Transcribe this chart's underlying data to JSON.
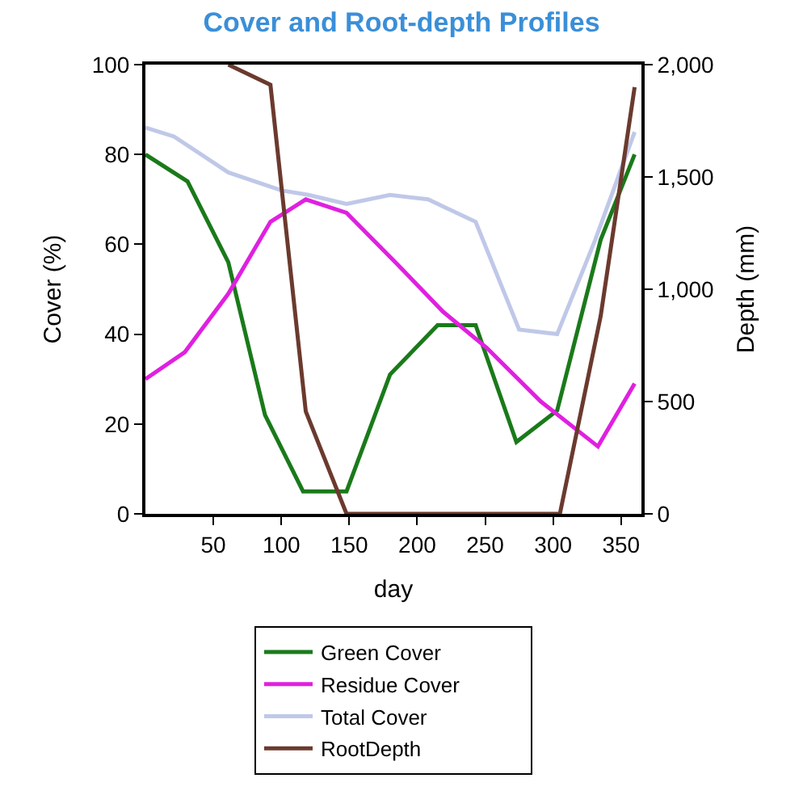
{
  "chart_data": {
    "type": "line",
    "title": "Cover and Root-depth Profiles",
    "xlabel": "day",
    "ylabel": "Cover (%)",
    "y2label": "Depth (mm)",
    "xlim": [
      0,
      365
    ],
    "xticks": [
      50,
      100,
      150,
      200,
      250,
      300,
      350
    ],
    "ylim": [
      0,
      100
    ],
    "yticks": [
      0,
      20,
      40,
      60,
      80,
      100
    ],
    "y2lim": [
      0,
      2000
    ],
    "y2ticks": [
      {
        "value": 0,
        "label": "0"
      },
      {
        "value": 500,
        "label": "500"
      },
      {
        "value": 1000,
        "label": "1,000"
      },
      {
        "value": 1500,
        "label": "1,500"
      },
      {
        "value": 2000,
        "label": "2,000"
      }
    ],
    "legend": "bottom",
    "marker": "none",
    "line_style": "solid",
    "series": [
      {
        "name": "Green Cover",
        "color": "#1a7a1a",
        "x": [
          0,
          31,
          61,
          88,
          116,
          148,
          180,
          215,
          243,
          273,
          303,
          335,
          360
        ],
        "values": [
          80,
          74,
          56,
          22,
          5,
          5,
          31,
          42,
          42,
          16,
          23,
          61,
          80
        ]
      },
      {
        "name": "Residue Cover",
        "color": "#e020e0",
        "x": [
          0,
          29,
          61,
          92,
          118,
          148,
          184,
          219,
          251,
          291,
          333,
          360
        ],
        "values": [
          30,
          36,
          49,
          65,
          70,
          67,
          56,
          45,
          37,
          25,
          15,
          29
        ]
      },
      {
        "name": "Total Cover",
        "color": "#c0c8e8",
        "x": [
          0,
          21,
          61,
          100,
          120,
          148,
          180,
          208,
          243,
          275,
          303,
          331,
          360
        ],
        "values": [
          86,
          84,
          76,
          72,
          71,
          69,
          71,
          70,
          65,
          41,
          40,
          61,
          85
        ]
      },
      {
        "name": "RootDepth",
        "color": "#6b3a2e",
        "axis": "y2",
        "x": [
          61,
          92,
          118,
          148,
          305,
          335,
          360
        ],
        "values": [
          2000,
          1910,
          456,
          0,
          0,
          880,
          1900
        ]
      }
    ]
  }
}
